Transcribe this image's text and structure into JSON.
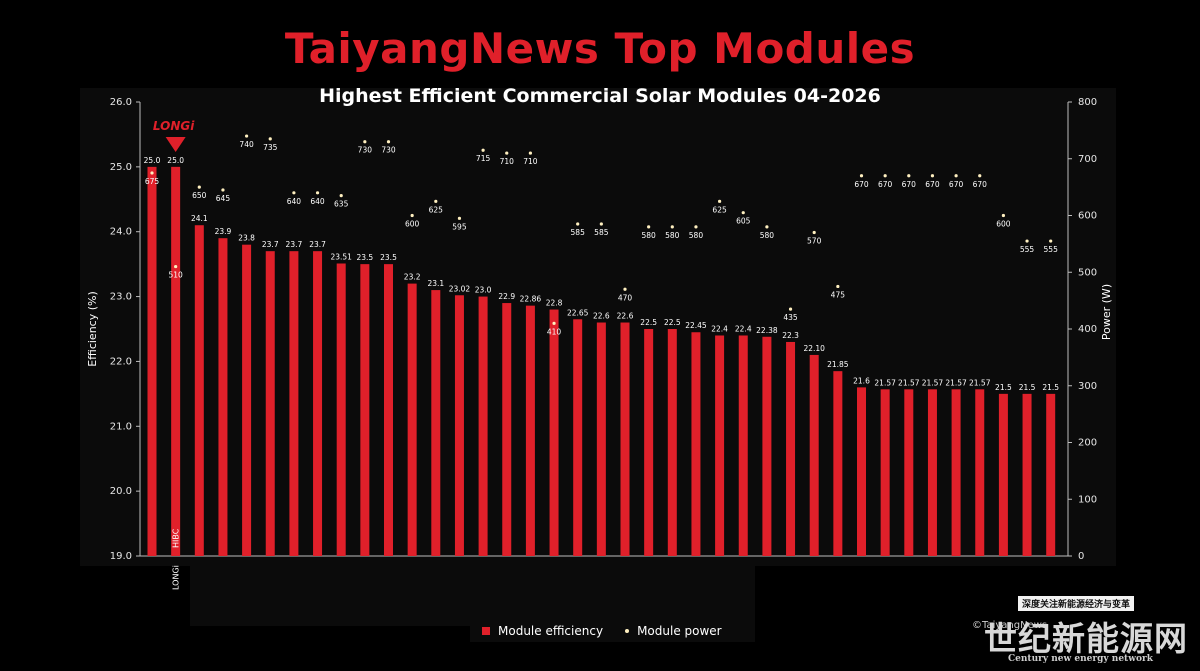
{
  "title": "TaiyangNews Top Modules",
  "chart_data": {
    "type": "bar",
    "title": "TaiyangNews Top Modules",
    "subtitle": "Highest Efficient Commercial Solar Modules 04-2026",
    "ylabel": "Efficiency (%)",
    "y2label": "Power (W)",
    "ylim": [
      19.0,
      26.0
    ],
    "y2lim": [
      0,
      800
    ],
    "yticks": [
      "19.0",
      "20.0",
      "21.0",
      "22.0",
      "23.0",
      "24.0",
      "25.0",
      "26.0"
    ],
    "y2ticks": [
      "0",
      "100",
      "200",
      "300",
      "400",
      "500",
      "600",
      "700",
      "800"
    ],
    "highlight": {
      "brand": "LONGi",
      "category_label": "LONGi",
      "bar_label": "HIBC"
    },
    "series": [
      {
        "name": "Module efficiency",
        "type": "bar",
        "values": [
          25.0,
          25.0,
          24.1,
          23.9,
          23.8,
          23.7,
          23.7,
          23.7,
          23.51,
          23.5,
          23.5,
          23.2,
          23.1,
          23.02,
          23.0,
          22.9,
          22.86,
          22.8,
          22.65,
          22.6,
          22.6,
          22.5,
          22.5,
          22.45,
          22.4,
          22.4,
          22.38,
          22.3,
          22.1,
          21.85,
          21.6,
          21.57,
          21.57,
          21.57,
          21.57,
          21.57,
          21.5,
          21.5,
          21.5
        ],
        "labels": [
          "25.0",
          "25.0",
          "24.1",
          "23.9",
          "23.8",
          "23.7",
          "23.7",
          "23.7",
          "23.51",
          "23.5",
          "23.5",
          "23.2",
          "23.1",
          "23.02",
          "23.0",
          "22.9",
          "22.86",
          "22.8",
          "22.65",
          "22.6",
          "22.6",
          "22.5",
          "22.5",
          "22.45",
          "22.4",
          "22.4",
          "22.38",
          "22.3",
          "22.10",
          "21.85",
          "21.6",
          "21.57",
          "21.57",
          "21.57",
          "21.57",
          "21.57",
          "21.5",
          "21.5",
          "21.5"
        ]
      },
      {
        "name": "Module power",
        "type": "scatter",
        "values": [
          675,
          510,
          650,
          645,
          740,
          735,
          640,
          640,
          635,
          730,
          730,
          600,
          625,
          595,
          715,
          710,
          710,
          410,
          585,
          585,
          470,
          580,
          580,
          580,
          625,
          605,
          580,
          435,
          570,
          475,
          670,
          670,
          670,
          670,
          670,
          670,
          600,
          555,
          555
        ]
      }
    ],
    "legend": "bottom",
    "grid": false
  },
  "legend": {
    "bar": "Module efficiency",
    "dot": "Module power"
  },
  "credit": "©TaiyangNews",
  "watermark": {
    "tag": "深度关注新能源经济与变革",
    "main": "世纪新能源网",
    "sub": "Century new energy network"
  },
  "colors": {
    "bar": "#e0202a",
    "title": "#e0202a",
    "dot": "#fff0c0",
    "marker": "#e0202a"
  }
}
